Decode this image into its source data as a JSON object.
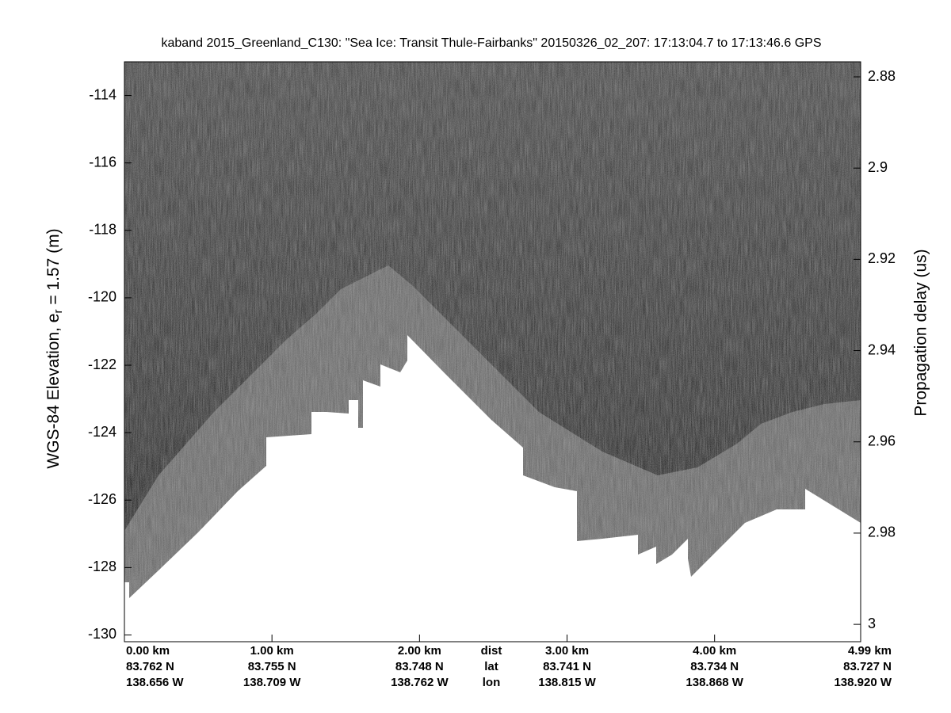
{
  "chart_data": {
    "type": "echogram",
    "title": "kaband 2015_Greenland_C130: \"Sea Ice: Transit Thule-Fairbanks\"  20150326_02_207: 17:13:04.7 to 17:13:46.6 GPS",
    "ylabel_parts": [
      "WGS-84 Elevation, e",
      "r",
      " = 1.57 (m)"
    ],
    "y2label": "Propagation delay (us)",
    "xlim": [
      0,
      4.99
    ],
    "xticks": [
      {
        "value": 0,
        "label": "0.00 km"
      },
      {
        "value": 1,
        "label": "1.00 km"
      },
      {
        "value": 2,
        "label": "2.00 km"
      },
      {
        "value": 3,
        "label": "3.00 km"
      },
      {
        "value": 4,
        "label": "4.00 km"
      },
      {
        "value": 4.99,
        "label": "4.99 km"
      }
    ],
    "xtick_lat": [
      "83.762 N",
      "83.755 N",
      "83.748 N",
      "83.741 N",
      "83.734 N",
      "83.727 N"
    ],
    "xtick_lon": [
      "138.656 W",
      "138.709 W",
      "138.762 W",
      "138.815 W",
      "138.868 W",
      "138.920 W"
    ],
    "row_labels": [
      "dist",
      "lat",
      "lon"
    ],
    "ylim": [
      -130.2,
      -113
    ],
    "yticks": [
      -130,
      -128,
      -126,
      -124,
      -122,
      -120,
      -118,
      -116,
      -114
    ],
    "y2lim": [
      3.0038,
      2.8767
    ],
    "y2ticks": [
      3,
      2.98,
      2.96,
      2.94,
      2.92,
      2.9,
      2.88
    ]
  }
}
